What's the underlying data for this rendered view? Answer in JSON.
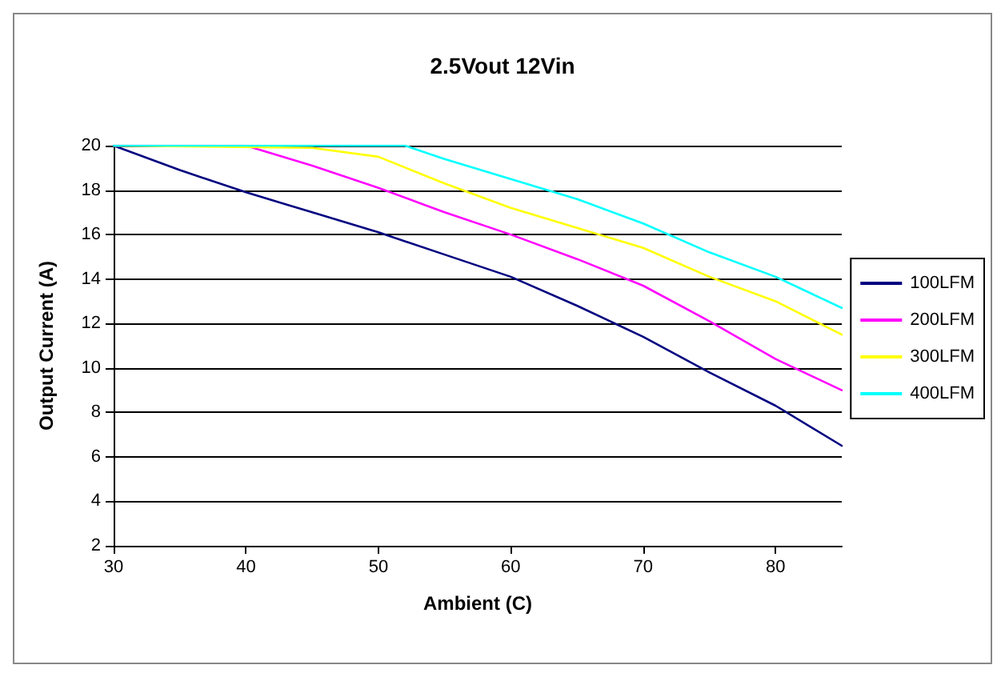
{
  "chart_data": {
    "type": "line",
    "title": "2.5Vout 12Vin",
    "xlabel": "Ambient (C)",
    "ylabel": "Output Current (A)",
    "xlim": [
      30,
      85
    ],
    "xticks": [
      30,
      40,
      50,
      60,
      70,
      80
    ],
    "ylim": [
      2,
      20
    ],
    "yticks": [
      2,
      4,
      6,
      8,
      10,
      12,
      14,
      16,
      18,
      20
    ],
    "grid": "y",
    "legend": "right",
    "marker": "none",
    "line_style": "solid",
    "series": [
      {
        "name": "100LFM",
        "color": "#000080",
        "x": [
          30,
          35,
          40,
          45,
          50,
          55,
          60,
          65,
          70,
          75,
          80,
          85
        ],
        "values": [
          20,
          18.9,
          17.9,
          17.0,
          16.1,
          15.1,
          14.1,
          12.8,
          11.4,
          9.8,
          8.3,
          6.5
        ]
      },
      {
        "name": "200LFM",
        "color": "#ff00ff",
        "x": [
          30,
          40,
          45,
          50,
          55,
          60,
          65,
          70,
          75,
          80,
          85
        ],
        "values": [
          20,
          20,
          19.1,
          18.1,
          17.0,
          16.0,
          14.9,
          13.7,
          12.1,
          10.4,
          9.0
        ]
      },
      {
        "name": "300LFM",
        "color": "#ffff00",
        "x": [
          30,
          45,
          50,
          55,
          60,
          65,
          70,
          75,
          80,
          85
        ],
        "values": [
          20,
          19.9,
          19.5,
          18.3,
          17.2,
          16.3,
          15.4,
          14.1,
          13.0,
          11.5
        ]
      },
      {
        "name": "400LFM",
        "color": "#00ffff",
        "x": [
          30,
          50,
          52,
          55,
          60,
          65,
          70,
          75,
          80,
          85
        ],
        "values": [
          20,
          20,
          20,
          19.4,
          18.5,
          17.6,
          16.5,
          15.2,
          14.1,
          12.7
        ]
      }
    ]
  }
}
